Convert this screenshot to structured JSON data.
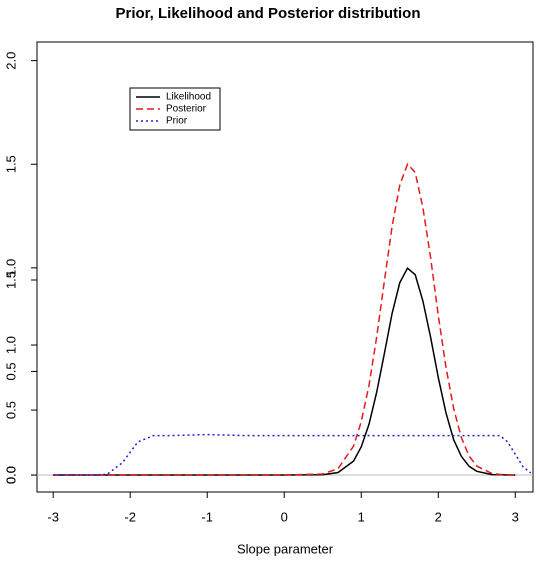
{
  "chart_data": {
    "type": "line",
    "title": "Prior, Likelihood and Posterior distribution",
    "x_label": "Slope parameter",
    "x": [
      -3,
      -2.5,
      -2.3,
      -2.1,
      -1.9,
      -1.7,
      -1.5,
      -1,
      -0.5,
      0,
      0.5,
      0.7,
      0.9,
      1.0,
      1.1,
      1.2,
      1.3,
      1.4,
      1.5,
      1.6,
      1.7,
      1.8,
      1.9,
      2.0,
      2.1,
      2.2,
      2.3,
      2.4,
      2.5,
      2.7,
      2.8,
      2.9,
      3.0,
      3.1,
      3.2
    ],
    "series": [
      {
        "name": "Likelihood",
        "color": "#000000",
        "dash": "solid",
        "values": [
          0,
          0,
          0,
          0,
          0,
          0,
          0,
          0,
          0,
          0,
          0.001,
          0.012,
          0.067,
          0.135,
          0.245,
          0.4,
          0.587,
          0.78,
          0.928,
          0.998,
          0.967,
          0.84,
          0.665,
          0.47,
          0.3,
          0.17,
          0.09,
          0.042,
          0.018,
          0.002,
          0.001,
          0,
          0,
          null,
          null
        ]
      },
      {
        "name": "Posterior",
        "color": "#e41a1c",
        "dash": "dashed",
        "values": [
          0,
          0,
          0,
          0,
          0,
          0,
          0,
          0,
          0,
          0,
          0.005,
          0.031,
          0.139,
          0.257,
          0.433,
          0.667,
          0.937,
          1.2,
          1.4,
          1.5,
          1.46,
          1.29,
          1.05,
          0.77,
          0.52,
          0.32,
          0.18,
          0.092,
          0.043,
          0.007,
          0.003,
          0.001,
          0,
          null,
          null
        ]
      },
      {
        "name": "Prior",
        "color": "#1f1fd6",
        "dash": "dotted",
        "values": [
          0,
          0,
          0.003,
          0.06,
          0.16,
          0.19,
          0.19,
          0.195,
          0.19,
          0.19,
          0.19,
          0.19,
          0.19,
          0.19,
          0.19,
          0.19,
          0.19,
          0.19,
          0.19,
          0.19,
          0.19,
          0.19,
          0.19,
          0.19,
          0.19,
          0.19,
          0.19,
          0.19,
          0.19,
          0.19,
          0.19,
          0.16,
          0.1,
          0.04,
          0.01
        ]
      }
    ],
    "xlim": [
      -3.21,
      3.23
    ],
    "xticks": [
      -3,
      -2,
      -1,
      0,
      1,
      2,
      3
    ],
    "ylim": [
      -0.082,
      2.09
    ],
    "yticks": [
      {
        "value": 0,
        "label": "0.0"
      },
      {
        "value": 0.5,
        "label": "0.5"
      },
      {
        "value": 1,
        "label": "1.0"
      },
      {
        "value": 1.5,
        "label": "1.5"
      },
      {
        "value": 2,
        "label": "2.0"
      }
    ],
    "y2lim": [
      -0.13,
      3.33
    ],
    "y2ticks": [
      {
        "value": 0,
        "label": "0.0"
      },
      {
        "value": 0.5,
        "label": "0.5"
      },
      {
        "value": 1,
        "label": "1.0"
      },
      {
        "value": 1.5,
        "label": "1.5"
      }
    ],
    "hline": 0,
    "legend": "top-left"
  }
}
